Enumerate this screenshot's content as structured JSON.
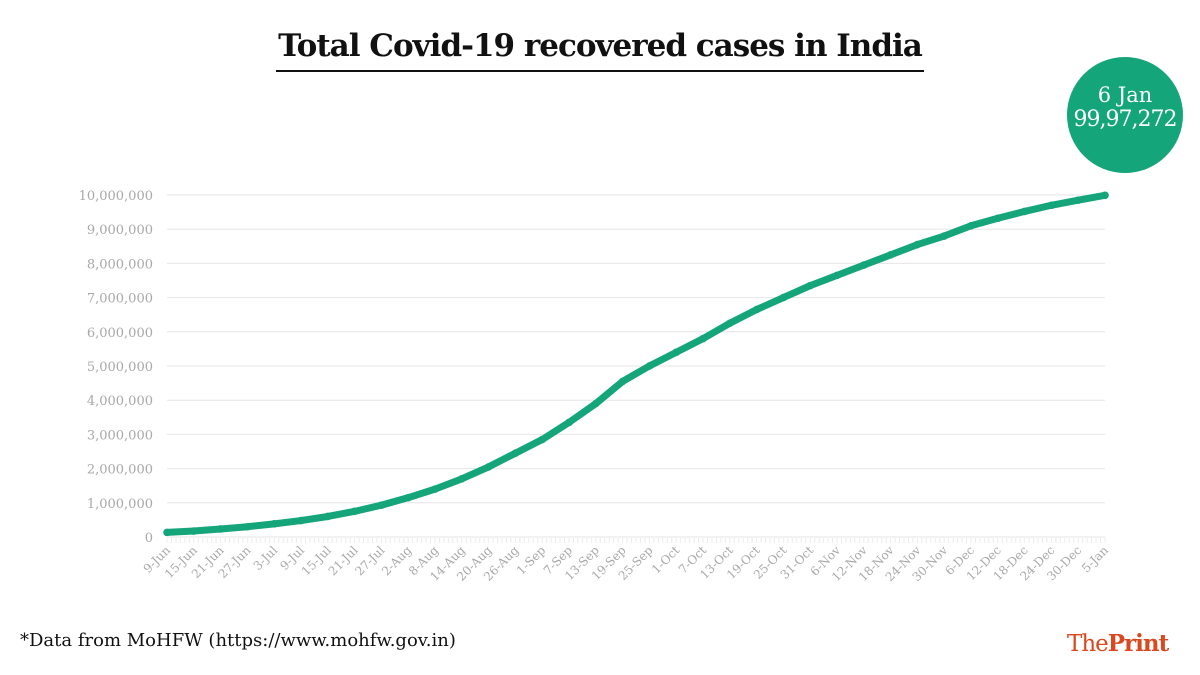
{
  "title": "Total Covid-19 recovered cases in India",
  "badge": {
    "date": "6 Jan",
    "value": "99,97,272"
  },
  "source": "*Data from MoHFW (https://www.mohfw.gov.in)",
  "logo": {
    "part1": "The",
    "part2": "Print"
  },
  "colors": {
    "line": "#15a57a",
    "badge": "#15a57a",
    "grid": "#e6e6e6",
    "tick_label": "#a8a8a8",
    "logo": "#d9481e"
  },
  "chart_data": {
    "type": "line",
    "title": "Total Covid-19 recovered cases in India",
    "xlabel": "",
    "ylabel": "",
    "ylim": [
      0,
      10000000
    ],
    "yticks": [
      0,
      1000000,
      2000000,
      3000000,
      4000000,
      5000000,
      6000000,
      7000000,
      8000000,
      9000000,
      10000000
    ],
    "ytick_labels": [
      "0",
      "1,000,000",
      "2,000,000",
      "3,000,000",
      "4,000,000",
      "5,000,000",
      "6,000,000",
      "7,000,000",
      "8,000,000",
      "9,000,000",
      "10,000,000"
    ],
    "grid": true,
    "x": [
      "9-Jun",
      "15-Jun",
      "21-Jun",
      "27-Jun",
      "3-Jul",
      "9-Jul",
      "15-Jul",
      "21-Jul",
      "27-Jul",
      "2-Aug",
      "8-Aug",
      "14-Aug",
      "20-Aug",
      "26-Aug",
      "1-Sep",
      "7-Sep",
      "13-Sep",
      "19-Sep",
      "25-Sep",
      "1-Oct",
      "7-Oct",
      "13-Oct",
      "19-Oct",
      "25-Oct",
      "31-Oct",
      "6-Nov",
      "12-Nov",
      "18-Nov",
      "24-Nov",
      "30-Nov",
      "6-Dec",
      "12-Dec",
      "18-Dec",
      "24-Dec",
      "30-Dec",
      "5-Jan"
    ],
    "series": [
      {
        "values": [
          135000,
          175000,
          235000,
          300000,
          385000,
          480000,
          600000,
          750000,
          930000,
          1150000,
          1400000,
          1700000,
          2050000,
          2450000,
          2850000,
          3350000,
          3900000,
          4550000,
          5000000,
          5400000,
          5800000,
          6250000,
          6650000,
          7000000,
          7350000,
          7650000,
          7950000,
          8250000,
          8550000,
          8800000,
          9100000,
          9320000,
          9520000,
          9700000,
          9850000,
          9990000
        ]
      }
    ]
  }
}
